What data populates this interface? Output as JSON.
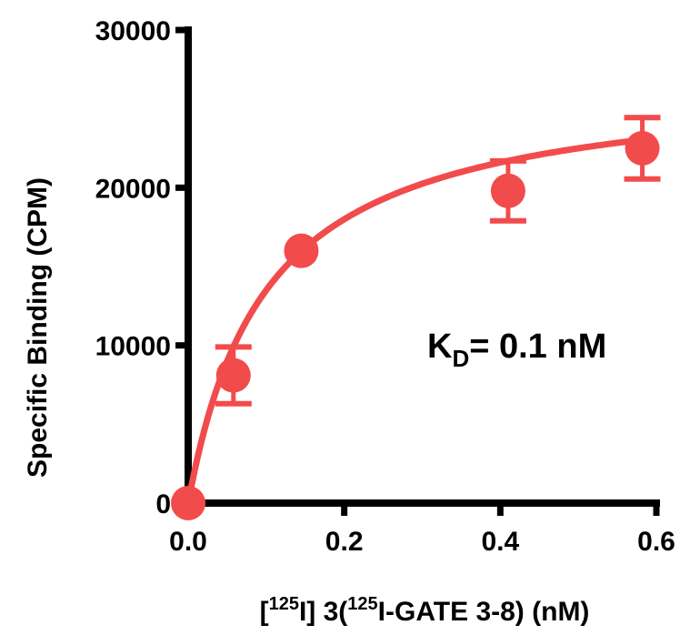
{
  "chart_data": {
    "type": "scatter",
    "title": "",
    "ylabel": "Specific Binding (CPM)",
    "xlabel_parts": {
      "open": "[",
      "sup1": "125",
      "mid": "I] 3(",
      "sup2": "125",
      "tail": "I-GATE 3-8) (nM)"
    },
    "xlim": [
      0,
      0.6
    ],
    "ylim": [
      0,
      30000
    ],
    "xticks": [
      0.0,
      0.2,
      0.4,
      0.6
    ],
    "xtick_labels": [
      "0.0",
      "0.2",
      "0.4",
      "0.6"
    ],
    "yticks": [
      0,
      10000,
      20000,
      30000
    ],
    "ytick_labels": [
      "0",
      "10000",
      "20000",
      "30000"
    ],
    "grid": false,
    "color": "#f24b4b",
    "series": [
      {
        "points": [
          {
            "x": 0.0,
            "y": 0,
            "err": 0
          },
          {
            "x": 0.058,
            "y": 8100,
            "err": 1800
          },
          {
            "x": 0.145,
            "y": 16000,
            "err": 0
          },
          {
            "x": 0.41,
            "y": 19800,
            "err": 1900
          },
          {
            "x": 0.582,
            "y": 22500,
            "err": 1950
          }
        ],
        "fit": {
          "model": "one-site specific binding",
          "Bmax": 27000,
          "Kd": 0.1
        }
      }
    ],
    "annotation": {
      "prefix": "K",
      "subscript": "D",
      "suffix": "= 0.1 nM"
    }
  }
}
